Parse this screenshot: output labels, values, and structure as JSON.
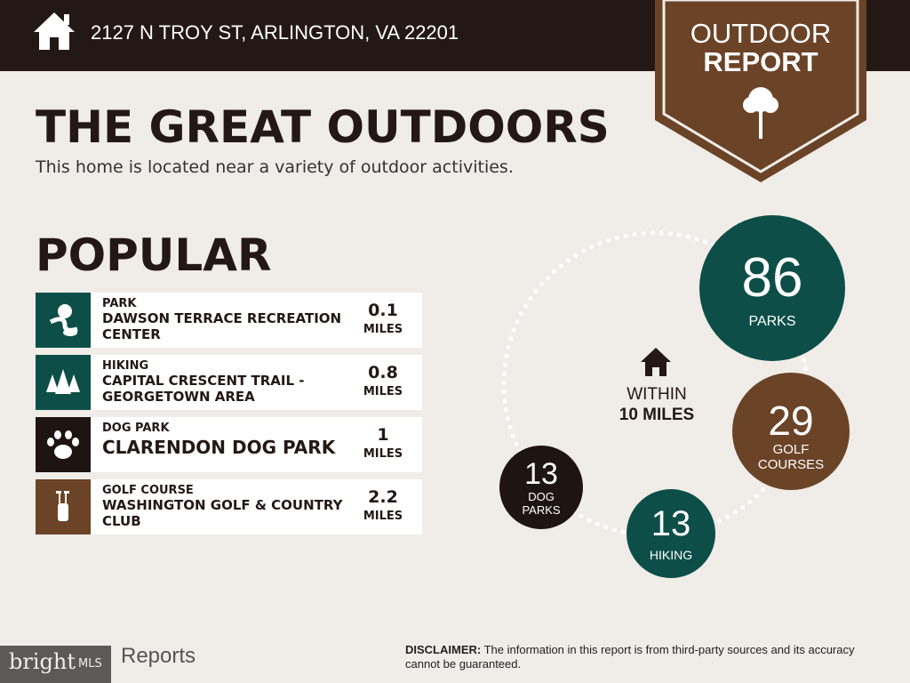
{
  "header": {
    "address": "2127 N TROY ST, ARLINGTON, VA 22201",
    "home_icon": "home-icon"
  },
  "badge": {
    "line1": "OUTDOOR",
    "line2": "REPORT",
    "icon": "tree-icon"
  },
  "title": "THE GREAT OUTDOORS",
  "subtitle": "This home is located near a variety of outdoor activities.",
  "popular": {
    "heading": "POPULAR",
    "items": [
      {
        "category": "PARK",
        "name": "DAWSON TERRACE RECREATION CENTER",
        "distance": "0.1",
        "unit": "MILES",
        "icon": "park-icon",
        "color": "#0d4f48"
      },
      {
        "category": "HIKING",
        "name": "CAPITAL CRESCENT TRAIL - GEORGETOWN AREA",
        "distance": "0.8",
        "unit": "MILES",
        "icon": "trees-icon",
        "color": "#0d4f48"
      },
      {
        "category": "DOG PARK",
        "name": "CLARENDON DOG PARK",
        "distance": "1",
        "unit": "MILES",
        "icon": "paw-icon",
        "color": "#1e1412"
      },
      {
        "category": "GOLF COURSE",
        "name": "WASHINGTON GOLF & COUNTRY CLUB",
        "distance": "2.2",
        "unit": "MILES",
        "icon": "golf-bag-icon",
        "color": "#6b4327"
      }
    ]
  },
  "counts": {
    "within_line1": "WITHIN",
    "within_line2": "10 MILES",
    "parks": {
      "value": "86",
      "label": "PARKS"
    },
    "golf": {
      "value": "29",
      "label1": "GOLF",
      "label2": "COURSES"
    },
    "hiking": {
      "value": "13",
      "label": "HIKING"
    },
    "dog": {
      "value": "13",
      "label1": "DOG",
      "label2": "PARKS"
    }
  },
  "footer": {
    "logo": "bright MLS",
    "reports": "Reports",
    "disclaimer_label": "DISCLAIMER:",
    "disclaimer": " The information in this report is from third-party sources and its accuracy cannot be guaranteed."
  }
}
